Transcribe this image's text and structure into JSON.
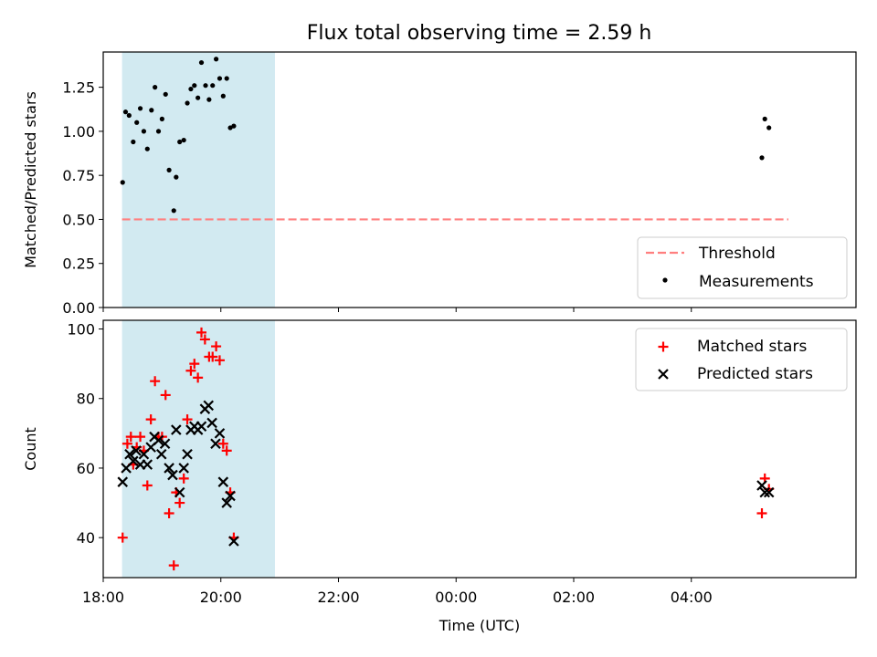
{
  "title": "Flux total observing time = 2.59 h",
  "colors": {
    "band": "#add8e6",
    "threshold": "#ff7f7f",
    "measurement": "#000000",
    "matched": "#ff0000",
    "predicted": "#000000"
  },
  "chart_data": [
    {
      "type": "scatter",
      "ylabel": "Matched/Predicted stars",
      "ylim": [
        0,
        1.45
      ],
      "yticks": [
        0.0,
        0.25,
        0.5,
        0.75,
        1.0,
        1.25
      ],
      "ytick_labels": [
        "0.00",
        "0.25",
        "0.50",
        "0.75",
        "1.00",
        "1.25"
      ],
      "xlim": [
        -6.0,
        6.8
      ],
      "observing_window": [
        -5.68,
        -3.08
      ],
      "threshold": {
        "name": "Threshold",
        "y": 0.5,
        "x_range": [
          -5.68,
          5.65
        ]
      },
      "legend": {
        "location": "lower right",
        "entries": [
          "Threshold",
          "Measurements"
        ]
      },
      "series": [
        {
          "name": "Measurements",
          "points": [
            [
              -5.67,
              0.71
            ],
            [
              -5.62,
              1.11
            ],
            [
              -5.56,
              1.09
            ],
            [
              -5.49,
              0.94
            ],
            [
              -5.43,
              1.05
            ],
            [
              -5.37,
              1.13
            ],
            [
              -5.31,
              1.0
            ],
            [
              -5.25,
              0.9
            ],
            [
              -5.18,
              1.12
            ],
            [
              -5.12,
              1.25
            ],
            [
              -5.06,
              1.0
            ],
            [
              -5.0,
              1.07
            ],
            [
              -4.94,
              1.21
            ],
            [
              -4.88,
              0.78
            ],
            [
              -4.8,
              0.55
            ],
            [
              -4.76,
              0.74
            ],
            [
              -4.7,
              0.94
            ],
            [
              -4.63,
              0.95
            ],
            [
              -4.57,
              1.16
            ],
            [
              -4.51,
              1.24
            ],
            [
              -4.45,
              1.26
            ],
            [
              -4.39,
              1.19
            ],
            [
              -4.33,
              1.39
            ],
            [
              -4.26,
              1.26
            ],
            [
              -4.2,
              1.18
            ],
            [
              -4.14,
              1.26
            ],
            [
              -4.08,
              1.41
            ],
            [
              -4.02,
              1.3
            ],
            [
              -3.96,
              1.2
            ],
            [
              -3.9,
              1.3
            ],
            [
              -3.84,
              1.02
            ],
            [
              -3.78,
              1.03
            ],
            [
              5.2,
              0.85
            ],
            [
              5.25,
              1.07
            ],
            [
              5.32,
              1.02
            ]
          ]
        }
      ]
    },
    {
      "type": "scatter",
      "xlabel": "Time (UTC)",
      "ylabel": "Count",
      "ylim": [
        28.5,
        102.5
      ],
      "yticks": [
        40,
        60,
        80,
        100
      ],
      "ytick_labels": [
        "40",
        "60",
        "80",
        "100"
      ],
      "xlim": [
        -6.0,
        6.8
      ],
      "xticks": [
        -6,
        -4,
        -2,
        0,
        2,
        4
      ],
      "xtick_labels": [
        "18:00",
        "20:00",
        "22:00",
        "00:00",
        "02:00",
        "04:00"
      ],
      "observing_window": [
        -5.68,
        -3.08
      ],
      "legend": {
        "location": "upper right",
        "entries": [
          "Matched stars",
          "Predicted stars"
        ]
      },
      "series": [
        {
          "name": "Matched stars",
          "marker": "plus",
          "points": [
            [
              -5.67,
              40
            ],
            [
              -5.59,
              67
            ],
            [
              -5.53,
              69
            ],
            [
              -5.49,
              61
            ],
            [
              -5.43,
              66
            ],
            [
              -5.37,
              69
            ],
            [
              -5.31,
              65
            ],
            [
              -5.25,
              55
            ],
            [
              -5.19,
              74
            ],
            [
              -5.12,
              85
            ],
            [
              -5.06,
              69
            ],
            [
              -5.0,
              69
            ],
            [
              -4.94,
              81
            ],
            [
              -4.88,
              47
            ],
            [
              -4.8,
              32
            ],
            [
              -4.76,
              53
            ],
            [
              -4.7,
              50
            ],
            [
              -4.63,
              57
            ],
            [
              -4.57,
              74
            ],
            [
              -4.51,
              88
            ],
            [
              -4.45,
              90
            ],
            [
              -4.39,
              86
            ],
            [
              -4.33,
              99
            ],
            [
              -4.27,
              97
            ],
            [
              -4.2,
              92
            ],
            [
              -4.14,
              92
            ],
            [
              -4.08,
              95
            ],
            [
              -4.02,
              91
            ],
            [
              -3.96,
              67
            ],
            [
              -3.9,
              65
            ],
            [
              -3.84,
              53
            ],
            [
              -3.78,
              40
            ],
            [
              5.2,
              47
            ],
            [
              5.25,
              57
            ],
            [
              5.32,
              54
            ]
          ]
        },
        {
          "name": "Predicted stars",
          "marker": "x",
          "points": [
            [
              -5.67,
              56
            ],
            [
              -5.61,
              60
            ],
            [
              -5.55,
              64
            ],
            [
              -5.49,
              62
            ],
            [
              -5.44,
              65
            ],
            [
              -5.37,
              61
            ],
            [
              -5.31,
              64
            ],
            [
              -5.25,
              61
            ],
            [
              -5.19,
              66
            ],
            [
              -5.13,
              69
            ],
            [
              -5.06,
              68
            ],
            [
              -5.01,
              64
            ],
            [
              -4.95,
              67
            ],
            [
              -4.88,
              60
            ],
            [
              -4.82,
              58
            ],
            [
              -4.76,
              71
            ],
            [
              -4.7,
              53
            ],
            [
              -4.63,
              60
            ],
            [
              -4.57,
              64
            ],
            [
              -4.51,
              71
            ],
            [
              -4.45,
              72
            ],
            [
              -4.39,
              71
            ],
            [
              -4.33,
              72
            ],
            [
              -4.27,
              77
            ],
            [
              -4.21,
              78
            ],
            [
              -4.15,
              73
            ],
            [
              -4.09,
              67
            ],
            [
              -4.02,
              70
            ],
            [
              -3.96,
              56
            ],
            [
              -3.9,
              50
            ],
            [
              -3.84,
              52
            ],
            [
              -3.78,
              39
            ],
            [
              5.2,
              55
            ],
            [
              5.25,
              53
            ],
            [
              5.32,
              53
            ]
          ]
        }
      ]
    }
  ]
}
